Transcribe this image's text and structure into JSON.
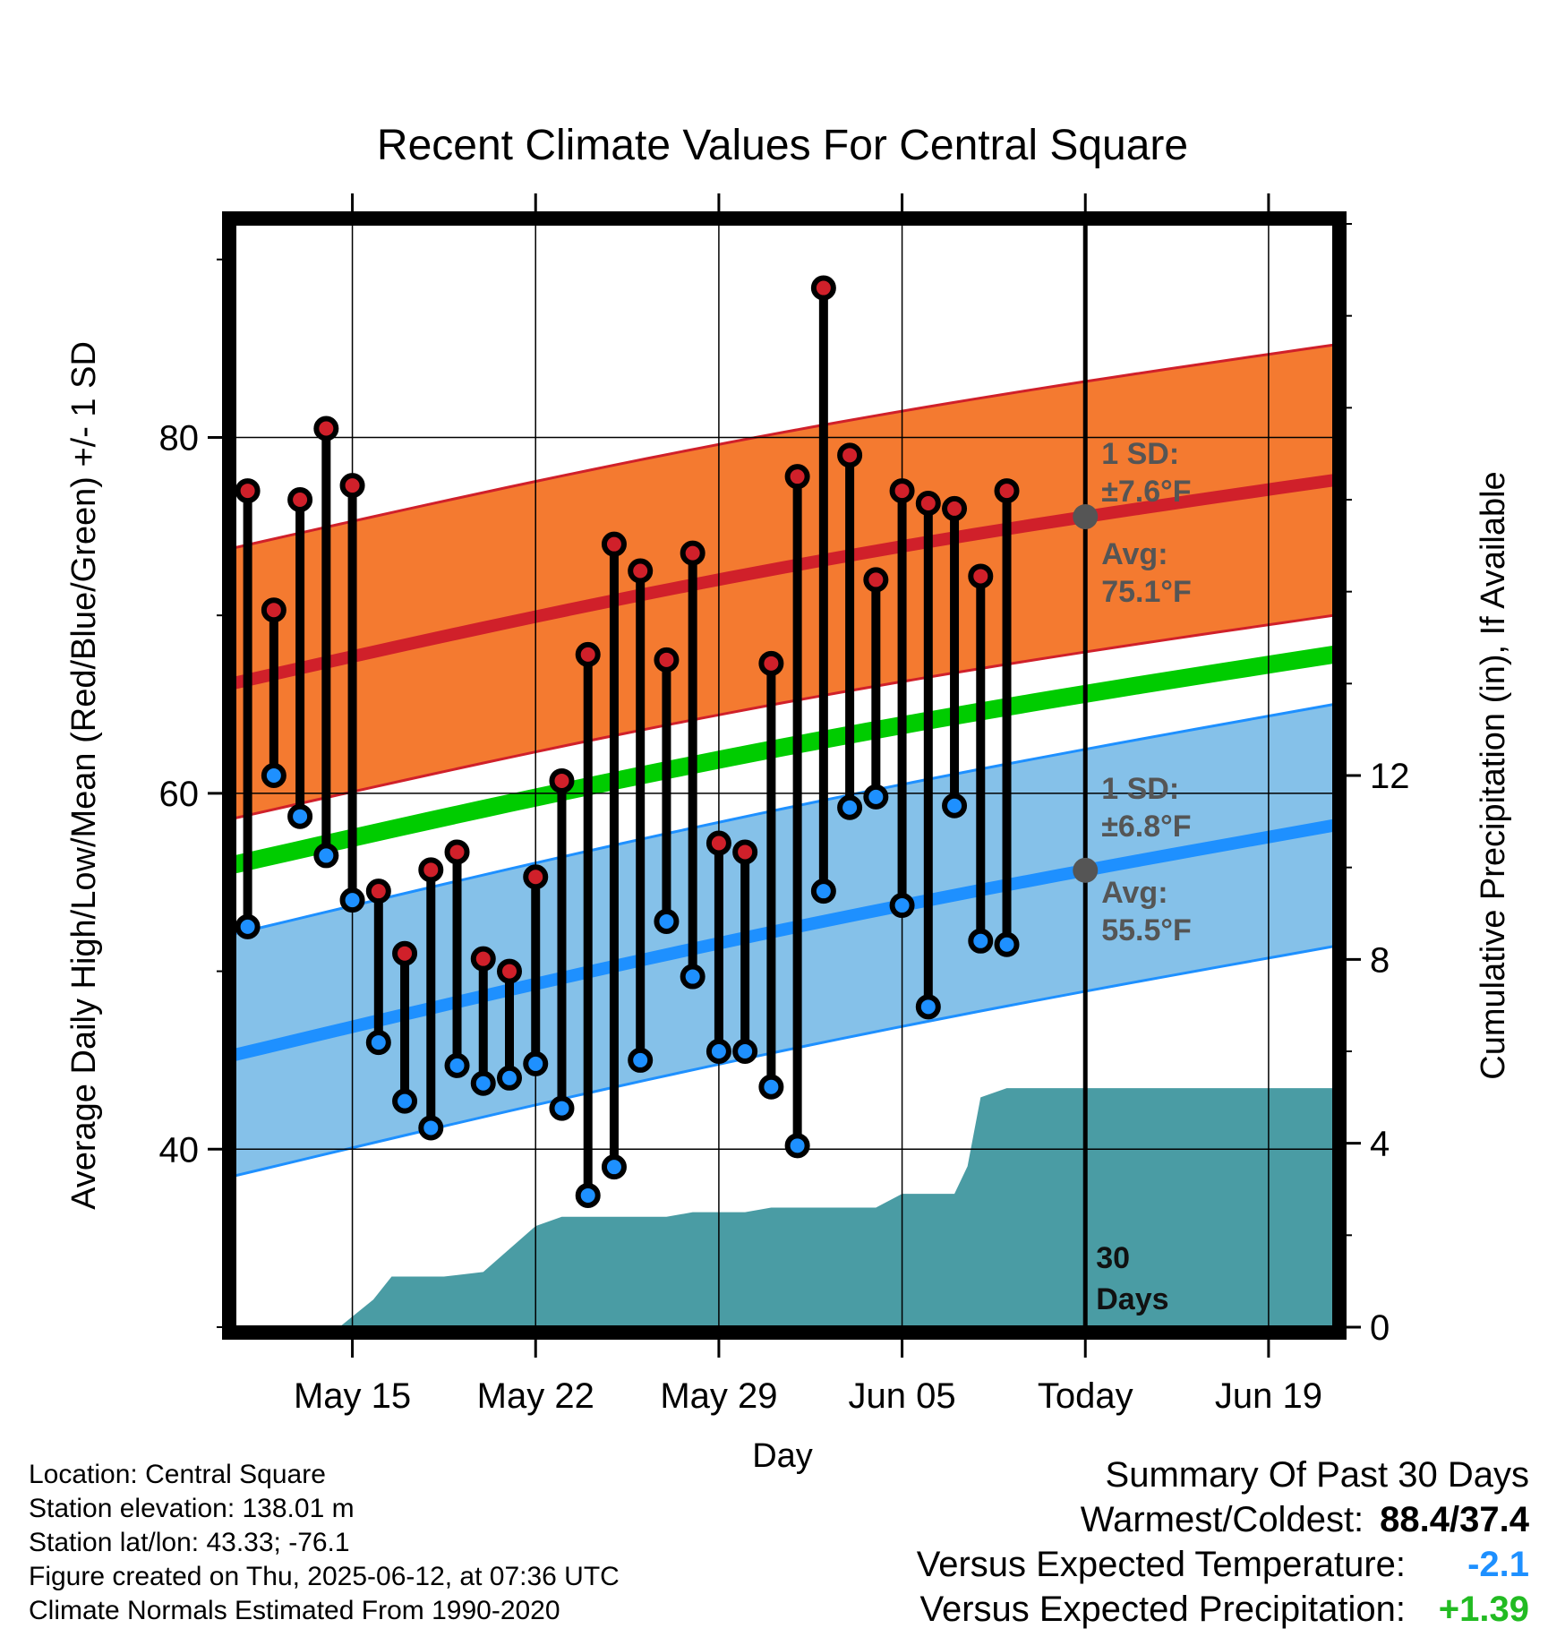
{
  "chart_data": {
    "type": "line",
    "title": "Recent Climate Values For Central Square",
    "xlabel": "Day",
    "ylabel_left": "Average Daily High/Low/Mean (Red/Blue/Green) +/- 1 SD",
    "ylabel_right": "Cumulative Precipitation (in), If Available",
    "x_ticks": [
      "May 15",
      "May 22",
      "May 29",
      "Jun 05",
      "Today",
      "Jun 19"
    ],
    "y_left_ticks": [
      "40",
      "60",
      "80"
    ],
    "y_right_ticks": [
      "0",
      "4",
      "8",
      "12"
    ],
    "ylim_left": [
      30,
      92
    ],
    "ylim_right": [
      0,
      24
    ],
    "x_range_days": [
      -32.5,
      9.5
    ],
    "x_tick_days": [
      -28,
      -21,
      -14,
      -7,
      0,
      7
    ],
    "grid": true,
    "normals": {
      "days": [
        -32.5,
        9.5
      ],
      "high_mean": [
        66.2,
        77.6
      ],
      "high_sd": 7.6,
      "low_mean": [
        45.3,
        58.2
      ],
      "low_sd": 6.8,
      "mean": [
        56.0,
        67.8
      ]
    },
    "series": [
      {
        "name": "High",
        "color": "#d0202a",
        "days": [
          -32,
          -31,
          -30,
          -29,
          -28,
          -27,
          -26,
          -25,
          -24,
          -23,
          -22,
          -21,
          -20,
          -19,
          -18,
          -17,
          -16,
          -15,
          -14,
          -13,
          -12,
          -11,
          -10,
          -9,
          -8,
          -7,
          -6,
          -5,
          -4,
          -3,
          -2,
          -1
        ],
        "values": [
          77.0,
          70.3,
          76.5,
          80.5,
          77.3,
          54.5,
          51.0,
          55.7,
          56.7,
          50.7,
          50.0,
          55.3,
          60.7,
          67.8,
          74.0,
          72.5,
          67.5,
          73.5,
          57.2,
          56.7,
          67.3,
          77.8,
          88.4,
          79.0,
          72.0,
          77.0,
          76.3,
          76.0,
          72.2,
          77.0,
          null,
          null
        ]
      },
      {
        "name": "Low",
        "color": "#1e90ff",
        "days": [
          -32,
          -31,
          -30,
          -29,
          -28,
          -27,
          -26,
          -25,
          -24,
          -23,
          -22,
          -21,
          -20,
          -19,
          -18,
          -17,
          -16,
          -15,
          -14,
          -13,
          -12,
          -11,
          -10,
          -9,
          -8,
          -7,
          -6,
          -5,
          -4,
          -3,
          -2,
          -1
        ],
        "values": [
          52.5,
          61.0,
          58.7,
          56.5,
          54.0,
          46.0,
          42.7,
          41.2,
          44.7,
          43.7,
          44.0,
          44.8,
          42.3,
          37.4,
          39.0,
          45.0,
          52.8,
          49.7,
          45.5,
          45.5,
          43.5,
          40.2,
          54.5,
          59.2,
          59.8,
          53.7,
          48.0,
          59.3,
          51.7,
          51.5,
          null,
          null
        ]
      }
    ],
    "precip_cumulative": {
      "days": [
        -32.5,
        -28.5,
        -27.2,
        -26.5,
        -24.5,
        -23,
        -22,
        -21,
        -20,
        -19,
        -18,
        -17,
        -16,
        -15,
        -14,
        -13,
        -12,
        -11,
        -10,
        -9,
        -8,
        -7,
        -6,
        -5,
        -4.5,
        -4,
        -3,
        -2,
        -1,
        0,
        9.5
      ],
      "values": [
        0,
        0,
        0.6,
        1.1,
        1.1,
        1.2,
        1.7,
        2.2,
        2.4,
        2.4,
        2.4,
        2.4,
        2.4,
        2.5,
        2.5,
        2.5,
        2.6,
        2.6,
        2.6,
        2.6,
        2.6,
        2.9,
        2.9,
        2.9,
        3.5,
        5.0,
        5.2,
        5.2,
        5.2,
        5.2,
        5.2
      ]
    },
    "today_annotations": {
      "high_sd": "1 SD:",
      "high_sd_val": "±7.6°F",
      "high_avg": "Avg:",
      "high_avg_val": "75.1°F",
      "low_sd": "1 SD:",
      "low_sd_val": "±6.8°F",
      "low_avg": "Avg:",
      "low_avg_val": "55.5°F",
      "days_num": "30",
      "days_word": "Days"
    },
    "colors": {
      "high_band": "#f47a30",
      "high_line": "#d0202a",
      "low_band": "#85c1e9",
      "low_line": "#1e90ff",
      "mean_line": "#00cc00",
      "precip": "#4a9ca4"
    }
  },
  "info": {
    "location": "Location: Central Square",
    "elevation": "Station elevation: 138.01 m",
    "latlon": "Station lat/lon: 43.33; -76.1",
    "created": "Figure created on Thu, 2025-06-12, at 07:36 UTC",
    "normals": "Climate Normals Estimated From 1990-2020"
  },
  "summary": {
    "title": "Summary Of Past 30 Days",
    "warm_cold_label": "Warmest/Coldest:",
    "warm_cold_value": "88.4/37.4",
    "temp_label": "Versus Expected Temperature:",
    "temp_value": "-2.1",
    "temp_color": "#1e90ff",
    "precip_label": "Versus Expected Precipitation:",
    "precip_value": "+1.39",
    "precip_color": "#22bb22"
  }
}
